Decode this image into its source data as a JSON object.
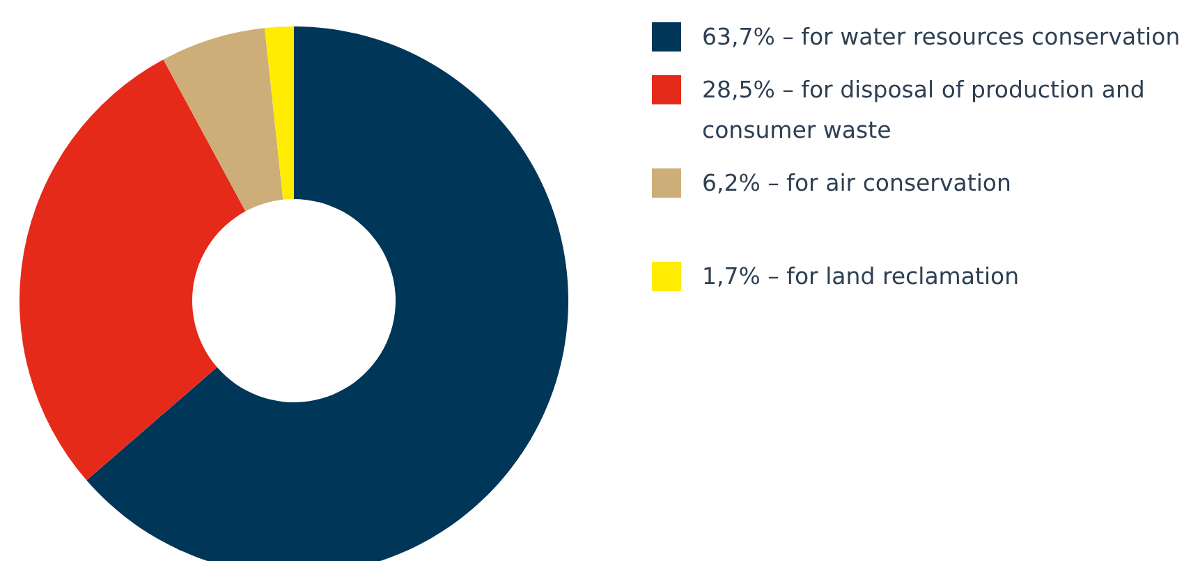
{
  "chart_data": {
    "type": "donut",
    "categories": [
      "63,7% – for water resources conservation",
      "28,5% – for disposal of production and consumer waste",
      "6,2% – for air conservation",
      "1,7% – for land reclamation"
    ],
    "values": [
      63.7,
      28.5,
      6.2,
      1.7
    ],
    "colors": [
      "#003658",
      "#e52a19",
      "#cdae78",
      "#ffec00"
    ],
    "legend": "right"
  }
}
